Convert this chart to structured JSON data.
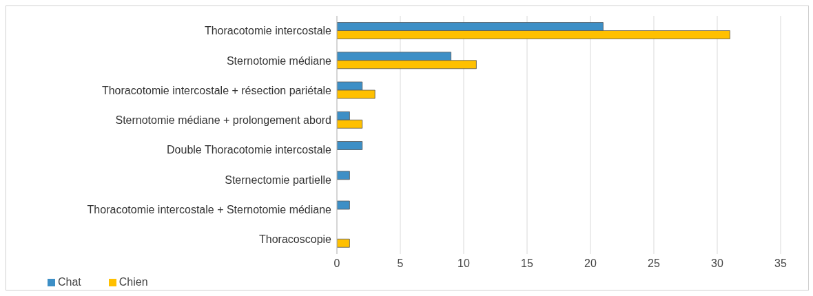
{
  "chart_data": {
    "type": "bar",
    "orientation": "horizontal",
    "categories": [
      "Thoracotomie intercostale",
      "Sternotomie médiane",
      "Thoracotomie intercostale + résection pariétale",
      "Sternotomie médiane + prolongement abord",
      "Double Thoracotomie intercostale",
      "Sternectomie partielle",
      "Thoracotomie intercostale + Sternotomie médiane",
      "Thoracoscopie"
    ],
    "series": [
      {
        "name": "Chat",
        "color": "#3d8fc6",
        "values": [
          21,
          9,
          2,
          1,
          2,
          1,
          1,
          0
        ]
      },
      {
        "name": "Chien",
        "color": "#ffc000",
        "values": [
          31,
          11,
          3,
          2,
          0,
          0,
          0,
          1
        ]
      }
    ],
    "xlim": [
      0,
      35
    ],
    "xticks": [
      0,
      5,
      10,
      15,
      20,
      25,
      30,
      35
    ],
    "grid": "x",
    "legend": "bottom left"
  }
}
